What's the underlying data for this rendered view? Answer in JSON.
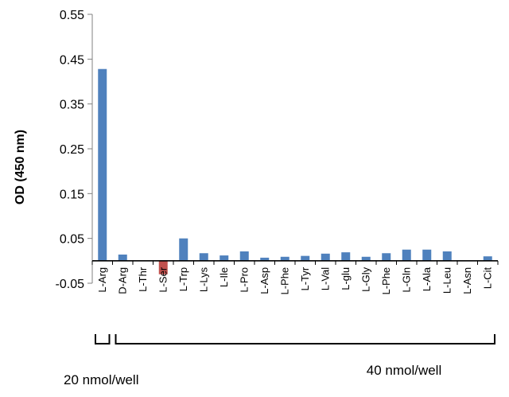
{
  "chart_data": {
    "type": "bar",
    "ylabel": "OD (450 nm)",
    "ylim": [
      -0.05,
      0.55
    ],
    "yticks": [
      -0.05,
      0.05,
      0.15,
      0.25,
      0.35,
      0.45,
      0.55
    ],
    "ytick_labels": [
      "-0.05",
      "0.05",
      "0.15",
      "0.25",
      "0.35",
      "0.45",
      "0.55"
    ],
    "categories": [
      "L-Arg",
      "D-Arg",
      "L-Thr",
      "L-Ser",
      "L-Trp",
      "L-Lys",
      "L-Ile",
      "L-Pro",
      "L-Asp",
      "L-Phe",
      "L-Tyr",
      "L-Val",
      "L-glu",
      "L-Gly",
      "L-Phe",
      "L-Gln",
      "L-Ala",
      "L-Leu",
      "L-Asn",
      "L-Cit"
    ],
    "values": [
      0.428,
      0.014,
      0.0,
      -0.03,
      0.05,
      0.017,
      0.012,
      0.021,
      0.007,
      0.009,
      0.011,
      0.016,
      0.019,
      0.009,
      0.017,
      0.025,
      0.025,
      0.021,
      0.0,
      0.01
    ],
    "colors": {
      "positive": "#4f81bd",
      "negative": "#c0504d"
    },
    "groups": [
      {
        "label": "20 nmol/well",
        "from": 0,
        "to": 0
      },
      {
        "label": "40 nmol/well",
        "from": 1,
        "to": 19
      }
    ],
    "grid": false,
    "legend": "none"
  }
}
